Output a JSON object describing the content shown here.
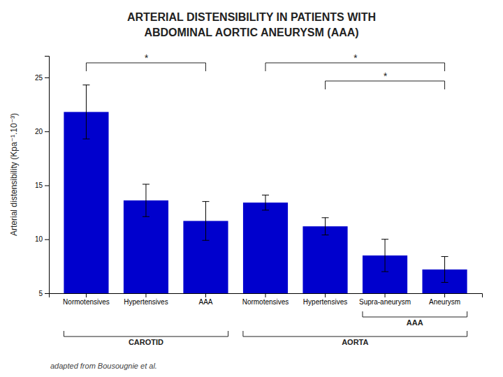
{
  "chart_data": {
    "type": "bar",
    "title": [
      "ARTERIAL DISTENSIBILITY IN PATIENTS WITH",
      "ABDOMINAL AORTIC ANEURYSM (AAA)"
    ],
    "ylabel": "Arterial distensibility (Kpa⁻¹.10⁻³)",
    "categories": [
      "Normotensives",
      "Hypertensives",
      "AAA",
      "Normotensives",
      "Hypertensives",
      "Supra-aneurysm",
      "Aneurysm"
    ],
    "values": [
      21.8,
      13.6,
      11.7,
      13.4,
      11.2,
      8.5,
      7.2
    ],
    "errors": [
      2.5,
      1.5,
      1.8,
      0.7,
      0.8,
      1.5,
      1.2
    ],
    "color": "#0000CD",
    "ylim": [
      5,
      27
    ],
    "yticks": [
      5,
      10,
      15,
      20,
      25
    ],
    "grid": false,
    "groups": [
      {
        "name": "CAROTID",
        "categories": [
          0,
          1,
          2
        ]
      },
      {
        "name": "AORTA",
        "categories": [
          3,
          4,
          5,
          6
        ]
      },
      {
        "name": "AAA",
        "categories": [
          5,
          6
        ]
      }
    ],
    "annotations": [
      {
        "text": "*",
        "categories": [
          0,
          2
        ]
      },
      {
        "text": "*",
        "categories": [
          3,
          6
        ]
      },
      {
        "text": "*",
        "categories": [
          4,
          6
        ]
      }
    ],
    "caption": "adapted from Bousougnie et al."
  }
}
